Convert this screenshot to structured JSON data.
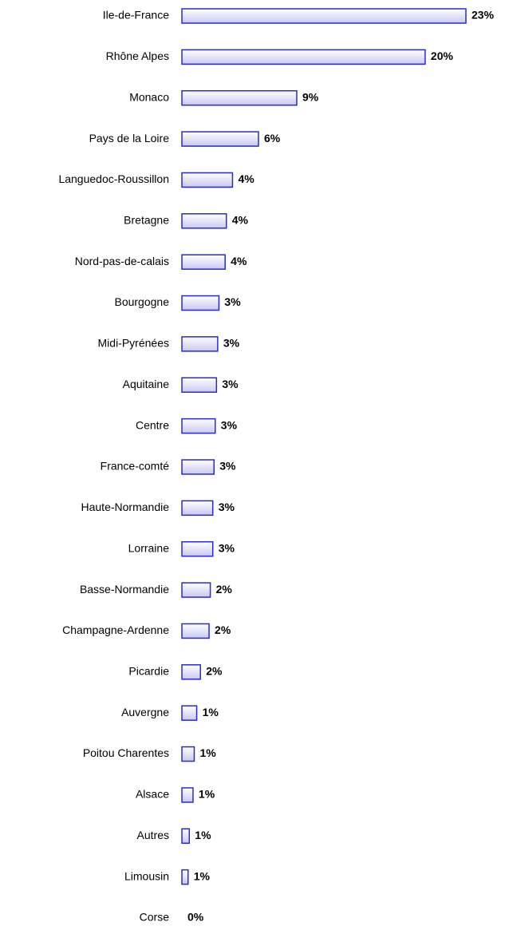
{
  "chart_data": {
    "type": "bar",
    "orientation": "horizontal",
    "categories": [
      "Ile-de-France",
      "Rhône Alpes",
      "Monaco",
      "Pays de la Loire",
      "Languedoc-Roussillon",
      "Bretagne",
      "Nord-pas-de-calais",
      "Bourgogne",
      "Midi-Pyrénées",
      "Aquitaine",
      "Centre",
      "France-comté",
      "Haute-Normandie",
      "Lorraine",
      "Basse-Normandie",
      "Champagne-Ardenne",
      "Picardie",
      "Auvergne",
      "Poitou Charentes",
      "Alsace",
      "Autres",
      "Limousin",
      "Corse"
    ],
    "values": [
      23,
      19.7,
      9.3,
      6.2,
      4.1,
      3.6,
      3.5,
      3.0,
      2.9,
      2.8,
      2.7,
      2.6,
      2.5,
      2.5,
      2.3,
      2.2,
      1.5,
      1.2,
      1.0,
      0.9,
      0.6,
      0.5,
      0
    ],
    "value_labels": [
      "23%",
      "20%",
      "9%",
      "6%",
      "4%",
      "4%",
      "4%",
      "3%",
      "3%",
      "3%",
      "3%",
      "3%",
      "3%",
      "3%",
      "2%",
      "2%",
      "2%",
      "1%",
      "1%",
      "1%",
      "1%",
      "1%",
      "0%"
    ],
    "color": "#2a2ad0",
    "xlim": [
      0,
      23
    ]
  }
}
